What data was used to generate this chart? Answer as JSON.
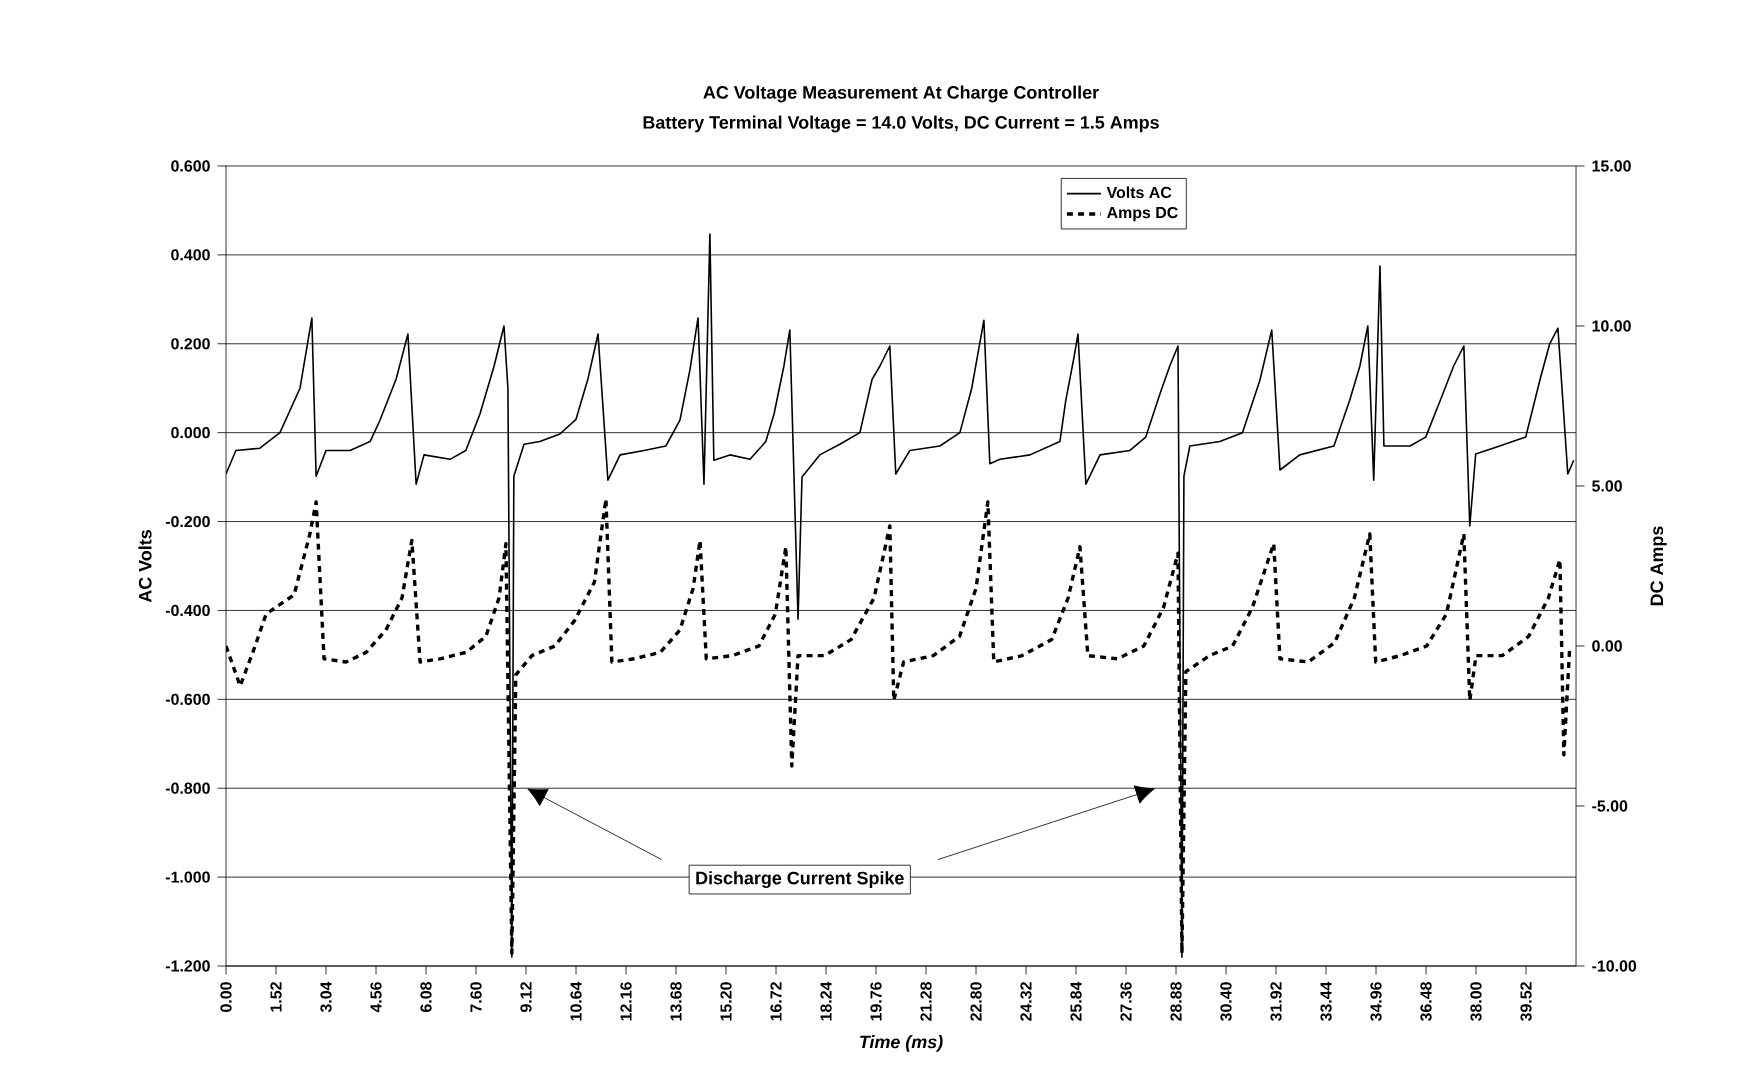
{
  "chart_data": {
    "type": "line",
    "title": "AC Voltage Measurement At Charge Controller",
    "subtitle": "Battery Terminal Voltage = 14.0 Volts, DC Current = 1.5 Amps",
    "xlabel": "Time (ms)",
    "ylabel": "AC Volts",
    "y2label": "DC Amps",
    "xlim": [
      0,
      41.04
    ],
    "ylim": [
      -1.2,
      0.6
    ],
    "y2lim": [
      -10,
      15
    ],
    "xticks": [
      {
        "value": 0,
        "label": "0.00"
      },
      1.52,
      3.04,
      4.56,
      6.08,
      {
        "value": 7.6,
        "label": "7.60"
      },
      9.12,
      10.64,
      12.16,
      13.68,
      {
        "value": 15.2,
        "label": "15.20"
      },
      16.72,
      18.24,
      19.76,
      21.28,
      {
        "value": 22.8,
        "label": "22.80"
      },
      24.32,
      25.84,
      27.36,
      28.88,
      {
        "value": 30.4,
        "label": "30.40"
      },
      31.92,
      33.44,
      34.96,
      36.48,
      {
        "value": 38,
        "label": "38.00"
      },
      39.52
    ],
    "yticks": [
      {
        "value": -1.2,
        "label": "-1.200"
      },
      {
        "value": -1.0,
        "label": "-1.000"
      },
      {
        "value": -0.8,
        "label": "-0.800"
      },
      {
        "value": -0.6,
        "label": "-0.600"
      },
      {
        "value": -0.4,
        "label": "-0.400"
      },
      {
        "value": -0.2,
        "label": "-0.200"
      },
      {
        "value": 0,
        "label": "0.000"
      },
      {
        "value": 0.2,
        "label": "0.200"
      },
      {
        "value": 0.4,
        "label": "0.400"
      },
      {
        "value": 0.6,
        "label": "0.600"
      }
    ],
    "y2ticks": [
      {
        "value": -10,
        "label": "-10.00"
      },
      {
        "value": -5,
        "label": "-5.00"
      },
      {
        "value": 0,
        "label": "0.00"
      },
      {
        "value": 5,
        "label": "5.00"
      },
      {
        "value": 10,
        "label": "10.00"
      },
      {
        "value": 15,
        "label": "15.00"
      }
    ],
    "grid": "y",
    "legend": "top",
    "annotations": [
      "Discharge Current Spike"
    ],
    "series": [
      {
        "name": "Volts AC",
        "color": "#000000",
        "line_style": "solid",
        "x": [
          0.0,
          0.3,
          1.03,
          1.64,
          2.25,
          2.61,
          2.74,
          3.04,
          3.77,
          4.38,
          4.68,
          5.17,
          5.53,
          5.78,
          6.02,
          6.81,
          7.29,
          7.72,
          8.15,
          8.45,
          8.57,
          8.69,
          8.75,
          9.06,
          9.54,
          10.15,
          10.64,
          11.0,
          11.31,
          11.61,
          11.98,
          12.71,
          13.37,
          13.8,
          14.1,
          14.35,
          14.53,
          14.71,
          14.83,
          15.32,
          15.93,
          16.41,
          16.66,
          16.96,
          17.14,
          17.39,
          17.51,
          18.05,
          18.66,
          19.27,
          19.64,
          19.88,
          20.18,
          20.36,
          20.79,
          21.7,
          22.31,
          22.67,
          23.04,
          23.22,
          23.53,
          24.44,
          25.35,
          25.53,
          25.78,
          25.9,
          26.14,
          26.57,
          27.48,
          27.96,
          28.39,
          28.69,
          28.94,
          29.06,
          29.12,
          29.3,
          30.21,
          30.9,
          31.43,
          31.79,
          32.04,
          32.64,
          33.68,
          34.16,
          34.47,
          34.71,
          34.89,
          35.08,
          35.2,
          35.99,
          36.47,
          36.9,
          37.32,
          37.63,
          37.81,
          37.99,
          38.72,
          39.51,
          39.94,
          40.24,
          40.49,
          40.79,
          40.97
        ],
        "values": [
          -0.093,
          -0.04,
          -0.035,
          0.0,
          0.1,
          0.258,
          -0.098,
          -0.04,
          -0.04,
          -0.02,
          0.028,
          0.12,
          0.222,
          -0.116,
          -0.05,
          -0.06,
          -0.04,
          0.042,
          0.15,
          0.24,
          0.1,
          -1.18,
          -0.098,
          -0.026,
          -0.02,
          -0.003,
          0.03,
          0.12,
          0.222,
          -0.107,
          -0.05,
          -0.04,
          -0.03,
          0.028,
          0.14,
          0.258,
          -0.116,
          0.447,
          -0.062,
          -0.05,
          -0.06,
          -0.02,
          0.042,
          0.15,
          0.231,
          -0.42,
          -0.1,
          -0.05,
          -0.026,
          0.0,
          0.12,
          0.15,
          0.195,
          -0.093,
          -0.04,
          -0.03,
          0.0,
          0.1,
          0.253,
          -0.07,
          -0.06,
          -0.05,
          -0.02,
          0.073,
          0.17,
          0.222,
          -0.116,
          -0.05,
          -0.04,
          -0.01,
          0.087,
          0.15,
          0.195,
          -1.18,
          -0.098,
          -0.03,
          -0.02,
          0.0,
          0.118,
          0.231,
          -0.084,
          -0.05,
          -0.03,
          0.073,
          0.15,
          0.24,
          -0.107,
          0.375,
          -0.03,
          -0.03,
          -0.01,
          0.07,
          0.15,
          0.195,
          -0.21,
          -0.048,
          -0.03,
          -0.01,
          0.118,
          0.2,
          0.235,
          -0.093,
          -0.062
        ]
      },
      {
        "name": "Amps DC",
        "color": "#000000",
        "line_style": "dashed",
        "axis": "y2",
        "x": [
          0.0,
          0.43,
          0.85,
          1.22,
          2.07,
          2.55,
          2.74,
          2.98,
          3.65,
          4.26,
          4.86,
          5.35,
          5.65,
          5.9,
          6.5,
          7.3,
          7.9,
          8.3,
          8.51,
          8.69,
          8.81,
          9.3,
          10.0,
          10.6,
          11.2,
          11.55,
          11.73,
          12.4,
          13.2,
          13.8,
          14.2,
          14.41,
          14.6,
          15.4,
          16.2,
          16.7,
          17.02,
          17.2,
          17.39,
          18.2,
          19.0,
          19.7,
          20.18,
          20.3,
          20.6,
          21.5,
          22.3,
          22.8,
          23.16,
          23.34,
          24.2,
          25.1,
          25.6,
          25.96,
          26.2,
          27.1,
          27.9,
          28.5,
          28.94,
          29.06,
          29.18,
          29.9,
          30.6,
          31.2,
          31.85,
          32.04,
          32.9,
          33.7,
          34.3,
          34.77,
          34.95,
          35.7,
          36.5,
          37.1,
          37.63,
          37.81,
          38.0,
          38.8,
          39.6,
          40.2,
          40.55,
          40.67,
          40.85
        ],
        "values": [
          0.0,
          -1.25,
          -0.1,
          1.0,
          1.6,
          3.5,
          4.5,
          -0.4,
          -0.5,
          -0.2,
          0.5,
          1.5,
          3.3,
          -0.5,
          -0.4,
          -0.2,
          0.3,
          1.5,
          3.2,
          -9.6,
          -0.9,
          -0.3,
          0.0,
          0.8,
          2.0,
          4.6,
          -0.5,
          -0.4,
          -0.2,
          0.5,
          1.8,
          3.3,
          -0.4,
          -0.3,
          0.0,
          1.0,
          3.1,
          -3.75,
          -0.3,
          -0.3,
          0.2,
          1.5,
          3.75,
          -1.7,
          -0.5,
          -0.3,
          0.3,
          1.8,
          4.5,
          -0.5,
          -0.3,
          0.2,
          1.5,
          3.1,
          -0.3,
          -0.4,
          0.0,
          1.2,
          2.9,
          -9.6,
          -0.8,
          -0.3,
          0.0,
          1.2,
          3.2,
          -0.4,
          -0.5,
          0.1,
          1.5,
          3.5,
          -0.5,
          -0.3,
          0.0,
          1.0,
          3.5,
          -1.7,
          -0.3,
          -0.3,
          0.3,
          1.5,
          2.7,
          -3.4,
          0.0
        ]
      }
    ]
  }
}
